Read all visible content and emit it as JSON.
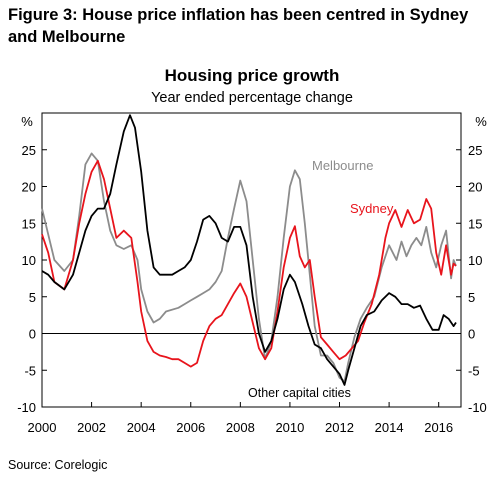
{
  "figure_title_line1": "Figure 3: House price inflation has been centred in Sydney",
  "figure_title_line2": "and Melbourne",
  "source": "Source: Corelogic",
  "colors": {
    "melbourne": "#8c8c8c",
    "sydney": "#e8141c",
    "other": "#000000"
  },
  "chart_data": {
    "type": "line",
    "title": "Housing price growth",
    "subtitle": "Year ended percentage change",
    "ylabel_left": "%",
    "ylabel_right": "%",
    "xlim": [
      2000.0,
      2016.9
    ],
    "ylim": [
      -10,
      30
    ],
    "x_ticks": [
      2000,
      2002,
      2004,
      2006,
      2008,
      2010,
      2012,
      2014,
      2016
    ],
    "y_ticks": [
      -10,
      -5,
      0,
      5,
      10,
      15,
      20,
      25
    ],
    "grid": false,
    "legend": "inline labels",
    "series": [
      {
        "name": "Melbourne",
        "color": "#8c8c8c",
        "points": [
          [
            2000.0,
            17
          ],
          [
            2000.25,
            13.5
          ],
          [
            2000.5,
            10
          ],
          [
            2000.9,
            8.5
          ],
          [
            2001.25,
            10
          ],
          [
            2001.5,
            16
          ],
          [
            2001.75,
            23
          ],
          [
            2002.0,
            24.5
          ],
          [
            2002.25,
            23.5
          ],
          [
            2002.5,
            18
          ],
          [
            2002.75,
            14
          ],
          [
            2003.0,
            12
          ],
          [
            2003.3,
            11.5
          ],
          [
            2003.6,
            12
          ],
          [
            2003.85,
            10
          ],
          [
            2004.0,
            6
          ],
          [
            2004.25,
            3
          ],
          [
            2004.5,
            1.5
          ],
          [
            2004.75,
            2
          ],
          [
            2005.0,
            3
          ],
          [
            2005.5,
            3.5
          ],
          [
            2005.75,
            4
          ],
          [
            2006.0,
            4.5
          ],
          [
            2006.25,
            5
          ],
          [
            2006.5,
            5.5
          ],
          [
            2006.75,
            6
          ],
          [
            2007.0,
            7
          ],
          [
            2007.25,
            8.5
          ],
          [
            2007.5,
            13
          ],
          [
            2007.75,
            17
          ],
          [
            2008.0,
            20.8
          ],
          [
            2008.25,
            18
          ],
          [
            2008.5,
            10
          ],
          [
            2008.75,
            2
          ],
          [
            2009.0,
            -3.5
          ],
          [
            2009.25,
            -1
          ],
          [
            2009.5,
            5
          ],
          [
            2009.75,
            13
          ],
          [
            2010.0,
            20
          ],
          [
            2010.2,
            22.2
          ],
          [
            2010.4,
            21
          ],
          [
            2010.6,
            15
          ],
          [
            2010.8,
            8
          ],
          [
            2011.0,
            1
          ],
          [
            2011.25,
            -3
          ],
          [
            2011.5,
            -3
          ],
          [
            2011.75,
            -4
          ],
          [
            2012.0,
            -6
          ],
          [
            2012.2,
            -6.5
          ],
          [
            2012.35,
            -4
          ],
          [
            2012.6,
            -0.5
          ],
          [
            2012.85,
            2
          ],
          [
            2013.1,
            3.5
          ],
          [
            2013.4,
            5
          ],
          [
            2013.7,
            9
          ],
          [
            2014.0,
            12
          ],
          [
            2014.3,
            10
          ],
          [
            2014.5,
            12.5
          ],
          [
            2014.7,
            10.5
          ],
          [
            2014.9,
            12
          ],
          [
            2015.1,
            13
          ],
          [
            2015.3,
            12
          ],
          [
            2015.5,
            14.5
          ],
          [
            2015.7,
            11
          ],
          [
            2015.9,
            9
          ],
          [
            2016.1,
            12
          ],
          [
            2016.3,
            14
          ],
          [
            2016.5,
            7.5
          ],
          [
            2016.6,
            10
          ],
          [
            2016.7,
            9.2
          ]
        ]
      },
      {
        "name": "Sydney",
        "color": "#e8141c",
        "points": [
          [
            2000.0,
            13.5
          ],
          [
            2000.25,
            11
          ],
          [
            2000.5,
            7
          ],
          [
            2000.9,
            6
          ],
          [
            2001.25,
            10
          ],
          [
            2001.5,
            15
          ],
          [
            2001.75,
            19
          ],
          [
            2002.0,
            22
          ],
          [
            2002.25,
            23.5
          ],
          [
            2002.5,
            21
          ],
          [
            2002.75,
            17
          ],
          [
            2003.0,
            13
          ],
          [
            2003.3,
            14
          ],
          [
            2003.6,
            13
          ],
          [
            2003.85,
            7
          ],
          [
            2004.0,
            3
          ],
          [
            2004.25,
            -1
          ],
          [
            2004.5,
            -2.5
          ],
          [
            2004.75,
            -3
          ],
          [
            2005.0,
            -3.2
          ],
          [
            2005.25,
            -3.5
          ],
          [
            2005.5,
            -3.5
          ],
          [
            2005.75,
            -4
          ],
          [
            2006.0,
            -4.5
          ],
          [
            2006.25,
            -4
          ],
          [
            2006.5,
            -1
          ],
          [
            2006.75,
            1
          ],
          [
            2007.0,
            2
          ],
          [
            2007.25,
            2.5
          ],
          [
            2007.5,
            4
          ],
          [
            2007.75,
            5.5
          ],
          [
            2008.0,
            6.8
          ],
          [
            2008.25,
            5
          ],
          [
            2008.5,
            1.5
          ],
          [
            2008.75,
            -2
          ],
          [
            2009.0,
            -3.5
          ],
          [
            2009.25,
            -2
          ],
          [
            2009.5,
            3
          ],
          [
            2009.75,
            9
          ],
          [
            2010.0,
            13
          ],
          [
            2010.2,
            14.6
          ],
          [
            2010.4,
            10.5
          ],
          [
            2010.6,
            9
          ],
          [
            2010.8,
            10
          ],
          [
            2011.0,
            5
          ],
          [
            2011.25,
            -0.5
          ],
          [
            2011.5,
            -1.5
          ],
          [
            2011.75,
            -2.5
          ],
          [
            2012.0,
            -3.5
          ],
          [
            2012.25,
            -3
          ],
          [
            2012.5,
            -2
          ],
          [
            2012.75,
            -1
          ],
          [
            2013.0,
            1.5
          ],
          [
            2013.3,
            4
          ],
          [
            2013.6,
            8
          ],
          [
            2013.85,
            13
          ],
          [
            2014.0,
            15
          ],
          [
            2014.25,
            16.8
          ],
          [
            2014.5,
            14.5
          ],
          [
            2014.75,
            16.8
          ],
          [
            2015.0,
            15
          ],
          [
            2015.25,
            15.5
          ],
          [
            2015.5,
            18.3
          ],
          [
            2015.7,
            17
          ],
          [
            2015.9,
            11
          ],
          [
            2016.1,
            8
          ],
          [
            2016.3,
            12
          ],
          [
            2016.5,
            8
          ],
          [
            2016.6,
            9.5
          ],
          [
            2016.7,
            9.2
          ]
        ]
      },
      {
        "name": "Other capital cities",
        "color": "#000000",
        "points": [
          [
            2000.0,
            8.5
          ],
          [
            2000.25,
            8
          ],
          [
            2000.5,
            7
          ],
          [
            2000.9,
            6
          ],
          [
            2001.25,
            8
          ],
          [
            2001.5,
            11
          ],
          [
            2001.75,
            14
          ],
          [
            2002.0,
            16
          ],
          [
            2002.25,
            17
          ],
          [
            2002.5,
            17
          ],
          [
            2002.75,
            19
          ],
          [
            2003.0,
            23
          ],
          [
            2003.3,
            27.5
          ],
          [
            2003.55,
            29.7
          ],
          [
            2003.75,
            28
          ],
          [
            2004.0,
            22
          ],
          [
            2004.25,
            14
          ],
          [
            2004.5,
            9
          ],
          [
            2004.75,
            8
          ],
          [
            2005.0,
            8
          ],
          [
            2005.25,
            8
          ],
          [
            2005.5,
            8.5
          ],
          [
            2005.75,
            9
          ],
          [
            2006.0,
            10
          ],
          [
            2006.25,
            12.5
          ],
          [
            2006.5,
            15.5
          ],
          [
            2006.75,
            16
          ],
          [
            2007.0,
            15
          ],
          [
            2007.25,
            13
          ],
          [
            2007.5,
            12.5
          ],
          [
            2007.75,
            14.5
          ],
          [
            2008.0,
            14.5
          ],
          [
            2008.25,
            12
          ],
          [
            2008.5,
            5
          ],
          [
            2008.75,
            0
          ],
          [
            2009.0,
            -2.5
          ],
          [
            2009.25,
            -1
          ],
          [
            2009.5,
            2
          ],
          [
            2009.75,
            6
          ],
          [
            2010.0,
            8
          ],
          [
            2010.2,
            7
          ],
          [
            2010.5,
            4
          ],
          [
            2010.75,
            1
          ],
          [
            2011.0,
            -1.5
          ],
          [
            2011.25,
            -2
          ],
          [
            2011.5,
            -3.5
          ],
          [
            2011.75,
            -4.5
          ],
          [
            2012.0,
            -5.5
          ],
          [
            2012.2,
            -7
          ],
          [
            2012.35,
            -5
          ],
          [
            2012.6,
            -2
          ],
          [
            2012.85,
            1
          ],
          [
            2013.1,
            2.5
          ],
          [
            2013.4,
            3
          ],
          [
            2013.7,
            4.5
          ],
          [
            2014.0,
            5.5
          ],
          [
            2014.25,
            5
          ],
          [
            2014.5,
            4
          ],
          [
            2014.75,
            4
          ],
          [
            2015.0,
            3.5
          ],
          [
            2015.25,
            3.8
          ],
          [
            2015.5,
            2
          ],
          [
            2015.75,
            0.5
          ],
          [
            2016.0,
            0.5
          ],
          [
            2016.2,
            2.5
          ],
          [
            2016.4,
            2
          ],
          [
            2016.6,
            1
          ],
          [
            2016.7,
            1.5
          ]
        ]
      }
    ],
    "labels": {
      "melbourne": "Melbourne",
      "sydney": "Sydney",
      "other": "Other capital cities"
    }
  }
}
